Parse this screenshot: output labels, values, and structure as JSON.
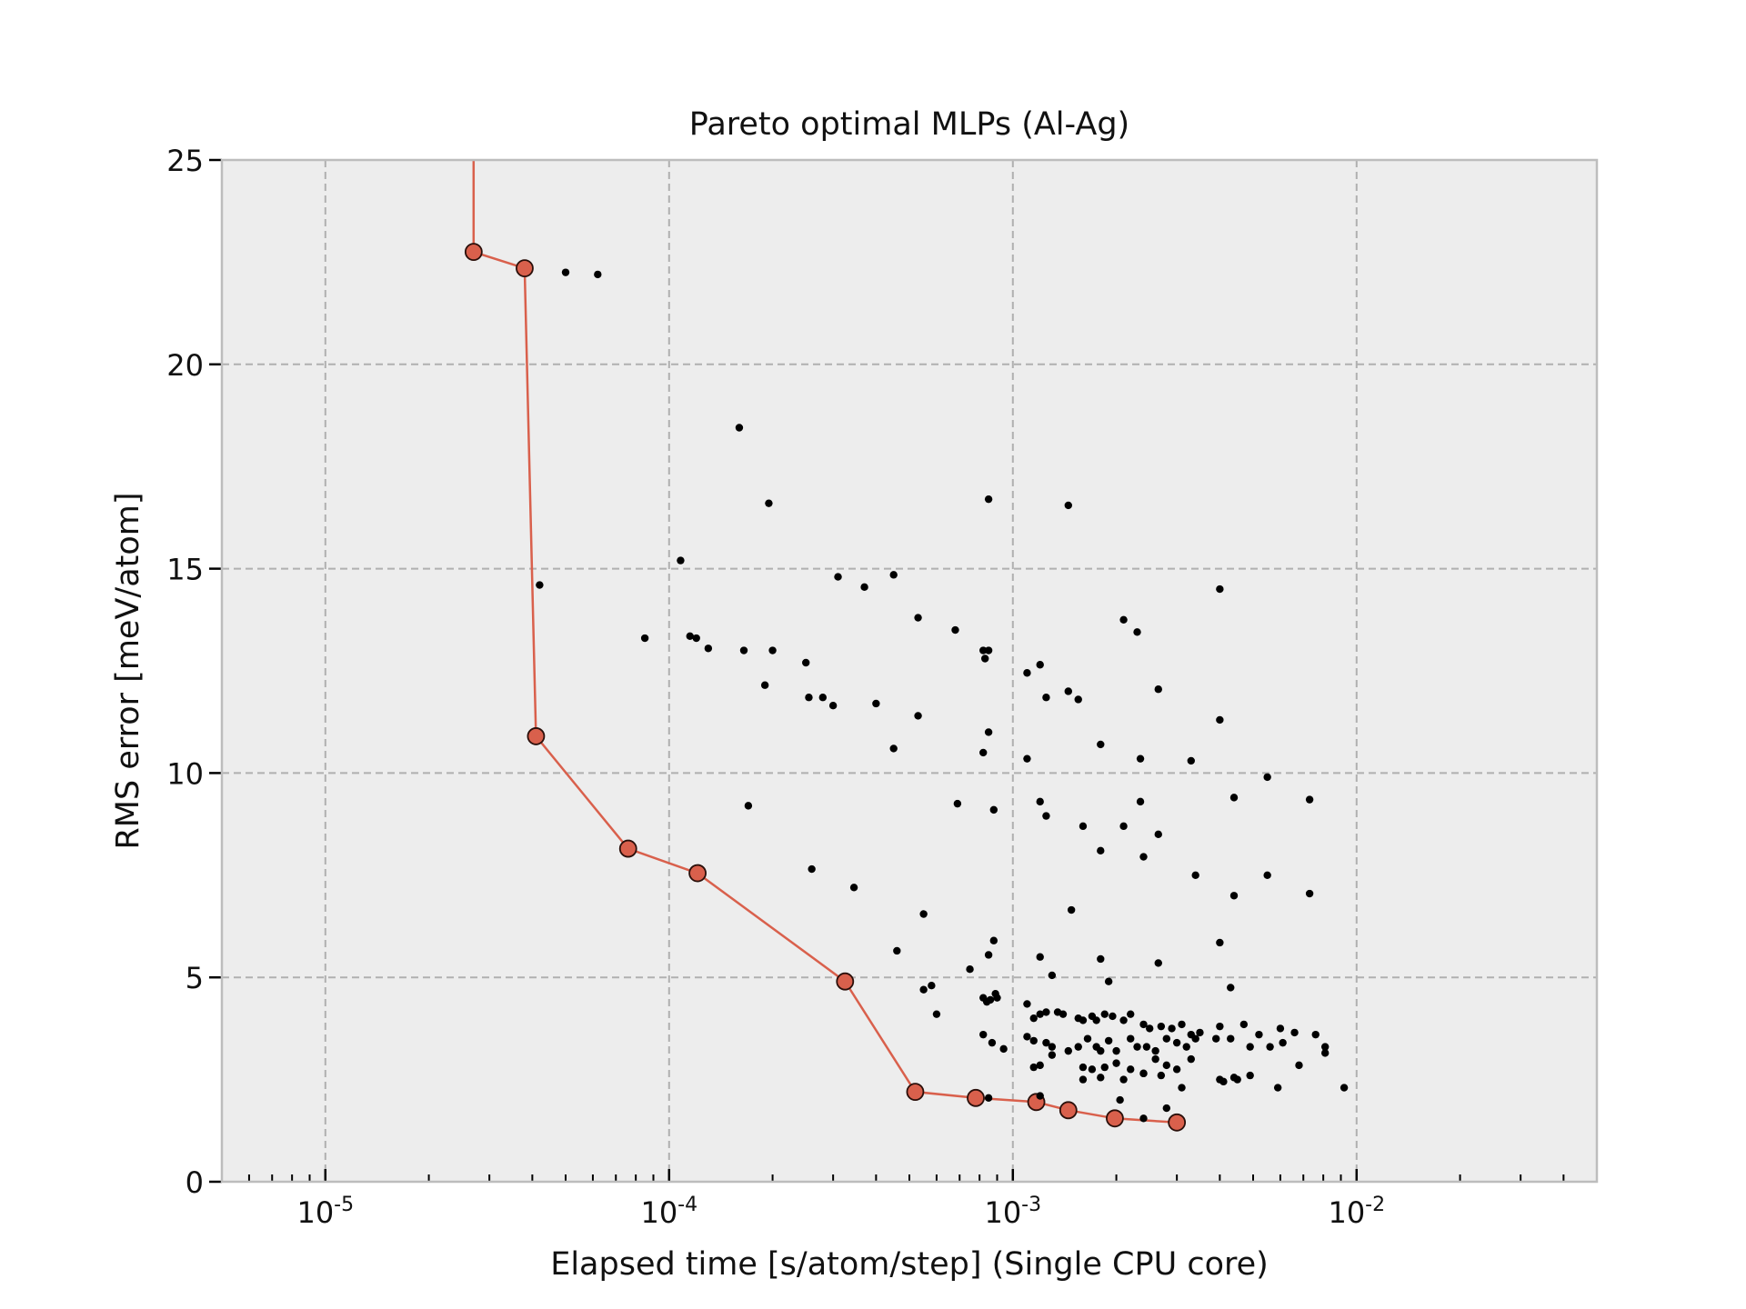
{
  "chart_data": {
    "type": "scatter",
    "title": "Pareto optimal MLPs (Al-Ag)",
    "xlabel": "Elapsed time [s/atom/step] (Single CPU core)",
    "ylabel": "RMS error [meV/atom]",
    "xscale": "log",
    "xlim": [
      5e-06,
      0.05
    ],
    "ylim": [
      0,
      25
    ],
    "grid": true,
    "x_ticks": [
      {
        "value": 1e-05,
        "base": "10",
        "exp": "-5"
      },
      {
        "value": 0.0001,
        "base": "10",
        "exp": "-4"
      },
      {
        "value": 0.001,
        "base": "10",
        "exp": "-3"
      },
      {
        "value": 0.01,
        "base": "10",
        "exp": "-2"
      }
    ],
    "y_ticks": [
      0,
      5,
      10,
      15,
      20,
      25
    ],
    "colors": {
      "pareto": "#d9604c",
      "pareto_edge": "#2a0f0a",
      "points": "#000000",
      "plot_background": "#ededed",
      "grid": "#b0b0b0",
      "frame": "#bdbdbd"
    },
    "series": [
      {
        "role": "pareto-front",
        "x": [
          2.7e-05,
          2.7e-05,
          3.8e-05,
          4.1e-05,
          7.6e-05,
          0.000121,
          0.000325,
          0.00052,
          0.00078,
          0.00117,
          0.00145,
          0.00198,
          0.003
        ],
        "y": [
          25,
          22.75,
          22.35,
          10.9,
          8.15,
          7.55,
          4.9,
          2.2,
          2.05,
          1.95,
          1.75,
          1.55,
          1.45
        ],
        "markers": [
          false,
          true,
          true,
          true,
          true,
          true,
          true,
          true,
          true,
          true,
          true,
          true,
          true
        ]
      },
      {
        "role": "all-models",
        "x": [
          5e-05,
          6.2e-05,
          0.00016,
          0.000195,
          0.000108,
          4.2e-05,
          8.5e-05,
          0.000115,
          0.00012,
          0.00013,
          0.000165,
          0.0002,
          0.00025,
          0.00019,
          0.000255,
          0.00028,
          0.0003,
          0.00031,
          0.00037,
          0.00045,
          0.0004,
          0.00045,
          0.00053,
          0.00053,
          0.00068,
          0.00083,
          0.00085,
          0.00082,
          0.00085,
          0.00082,
          0.00085,
          0.00145,
          0.0011,
          0.0012,
          0.00145,
          0.00155,
          0.00125,
          0.0021,
          0.0023,
          0.00265,
          0.004,
          0.004,
          0.0011,
          0.0018,
          0.00235,
          0.0033,
          0.0055,
          0.0044,
          0.0073,
          0.00017,
          0.00026,
          0.000345,
          0.00069,
          0.00088,
          0.0012,
          0.00125,
          0.0016,
          0.0021,
          0.00235,
          0.0018,
          0.0024,
          0.00265,
          0.0034,
          0.0055,
          0.0044,
          0.0073,
          0.00148,
          0.00055,
          0.00046,
          0.00075,
          0.00088,
          0.00085,
          0.0012,
          0.0013,
          0.0018,
          0.0019,
          0.00265,
          0.004,
          0.00055,
          0.00058,
          0.0006,
          0.00082,
          0.00084,
          0.00086,
          0.00089,
          0.0009,
          0.0011,
          0.00115,
          0.0012,
          0.00125,
          0.00135,
          0.0014,
          0.00155,
          0.0016,
          0.0017,
          0.00175,
          0.00185,
          0.00195,
          0.0021,
          0.0022,
          0.0024,
          0.0025,
          0.0027,
          0.0029,
          0.0031,
          0.0033,
          0.0035,
          0.004,
          0.0043,
          0.0047,
          0.0052,
          0.006,
          0.0066,
          0.0076,
          0.00082,
          0.00087,
          0.00094,
          0.0011,
          0.00115,
          0.00125,
          0.0013,
          0.00145,
          0.00155,
          0.00165,
          0.00175,
          0.0018,
          0.0019,
          0.002,
          0.0022,
          0.0023,
          0.00245,
          0.0026,
          0.0028,
          0.003,
          0.0032,
          0.0034,
          0.0039,
          0.0043,
          0.0049,
          0.0056,
          0.0061,
          0.0081,
          0.00115,
          0.0012,
          0.0013,
          0.0016,
          0.0017,
          0.00185,
          0.002,
          0.0022,
          0.0024,
          0.0026,
          0.0028,
          0.003,
          0.0033,
          0.004,
          0.0044,
          0.0049,
          0.0068,
          0.0081,
          0.0012,
          0.0016,
          0.0018,
          0.0021,
          0.0024,
          0.0027,
          0.0031,
          0.0041,
          0.0045,
          0.0059,
          0.0092,
          0.00205,
          0.0028,
          0.0024,
          0.00085
        ],
        "y": [
          22.25,
          22.2,
          18.45,
          16.6,
          15.2,
          14.6,
          13.3,
          13.35,
          13.3,
          13.05,
          13,
          13,
          12.7,
          12.15,
          11.85,
          11.85,
          11.65,
          14.8,
          14.55,
          14.85,
          11.7,
          10.6,
          11.4,
          13.8,
          13.5,
          12.8,
          16.7,
          13,
          11,
          10.5,
          13,
          16.55,
          12.45,
          12.65,
          12,
          11.8,
          11.85,
          13.75,
          13.45,
          12.05,
          14.5,
          11.3,
          10.35,
          10.7,
          10.35,
          10.3,
          9.9,
          9.4,
          9.35,
          9.2,
          7.65,
          7.2,
          9.25,
          9.1,
          9.3,
          8.95,
          8.7,
          8.7,
          9.3,
          8.1,
          7.95,
          8.5,
          7.5,
          7.5,
          7.0,
          7.05,
          6.65,
          6.55,
          5.65,
          5.2,
          5.9,
          5.55,
          5.5,
          5.05,
          5.45,
          4.9,
          5.35,
          5.85,
          4.7,
          4.8,
          4.1,
          4.5,
          4.4,
          4.45,
          4.6,
          4.5,
          4.35,
          4.0,
          4.1,
          4.15,
          4.15,
          4.1,
          4.0,
          3.95,
          4.05,
          3.95,
          4.1,
          4.05,
          3.95,
          4.1,
          3.85,
          3.75,
          3.8,
          3.75,
          3.85,
          3.6,
          3.65,
          3.8,
          4.75,
          3.85,
          3.6,
          3.75,
          3.65,
          3.6,
          3.6,
          3.4,
          3.25,
          3.55,
          3.45,
          3.4,
          3.3,
          3.2,
          3.3,
          3.5,
          3.3,
          3.2,
          3.45,
          3.2,
          3.5,
          3.3,
          3.3,
          3.2,
          3.5,
          3.4,
          3.3,
          3.5,
          3.5,
          3.5,
          3.3,
          3.3,
          3.4,
          3.3,
          2.8,
          2.85,
          3.1,
          2.8,
          2.75,
          2.8,
          2.9,
          2.75,
          2.65,
          3.0,
          2.85,
          2.75,
          3.0,
          2.5,
          2.55,
          2.6,
          2.85,
          3.15,
          2.1,
          2.5,
          2.55,
          2.5,
          2.65,
          2.6,
          2.3,
          2.45,
          2.5,
          2.3,
          2.3,
          2.0,
          1.8,
          1.55,
          2.05
        ]
      }
    ]
  }
}
